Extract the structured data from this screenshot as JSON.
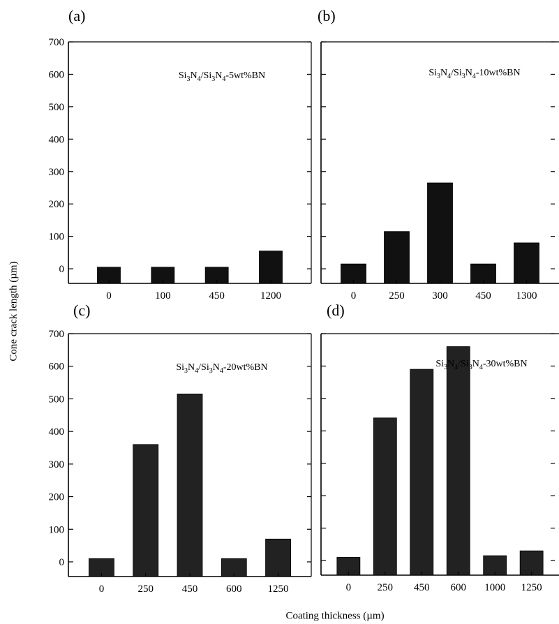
{
  "figure": {
    "xlabel": "Coating thickness (µm)",
    "ylabel": "Cone crack length (µm)"
  },
  "chart_data": [
    {
      "type": "bar",
      "panel": "(a)",
      "annotation": {
        "base": "Si",
        "sub1": "3",
        "mid": "N",
        "sub2": "4",
        "sep": "/Si",
        "sub3": "3",
        "mid2": "N",
        "sub4": "4",
        "suffix": "-5wt%BN"
      },
      "categories": [
        "0",
        "100",
        "450",
        "1200"
      ],
      "values": [
        5,
        5,
        5,
        55
      ],
      "ylim": [
        -45,
        700
      ],
      "yticks": [
        0,
        100,
        200,
        300,
        400,
        500,
        600,
        700
      ],
      "bar_color": "#111111"
    },
    {
      "type": "bar",
      "panel": "(b)",
      "annotation": {
        "base": "Si",
        "sub1": "3",
        "mid": "N",
        "sub2": "4",
        "sep": "/Si",
        "sub3": "3",
        "mid2": "N",
        "sub4": "4",
        "suffix": "-10wt%BN"
      },
      "categories": [
        "0",
        "250",
        "300",
        "450",
        "1300"
      ],
      "values": [
        15,
        115,
        265,
        15,
        80
      ],
      "ylim": [
        -45,
        700
      ],
      "yticks": [
        0,
        100,
        200,
        300,
        400,
        500,
        600,
        700
      ],
      "bar_color": "#111111"
    },
    {
      "type": "bar",
      "panel": "(c)",
      "annotation": {
        "base": "Si",
        "sub1": "3",
        "mid": "N",
        "sub2": "4",
        "sep": "/Si",
        "sub3": "3",
        "mid2": "N",
        "sub4": "4",
        "suffix": "-20wt%BN"
      },
      "categories": [
        "0",
        "250",
        "450",
        "600",
        "1250"
      ],
      "values": [
        10,
        360,
        515,
        10,
        70
      ],
      "ylim": [
        -45,
        700
      ],
      "yticks": [
        0,
        100,
        200,
        300,
        400,
        500,
        600,
        700
      ],
      "bar_color": "#222222"
    },
    {
      "type": "bar",
      "panel": "(d)",
      "annotation": {
        "base": "Si",
        "sub1": "3",
        "mid": "N",
        "sub2": "4",
        "sep": "/Si",
        "sub3": "3",
        "mid2": "N",
        "sub4": "4",
        "suffix": "-30wt%BN"
      },
      "categories": [
        "0",
        "250",
        "450",
        "600",
        "1000",
        "1250"
      ],
      "values": [
        10,
        440,
        590,
        660,
        15,
        30
      ],
      "ylim": [
        -45,
        700
      ],
      "yticks": [
        0,
        100,
        200,
        300,
        400,
        500,
        600,
        700
      ],
      "bar_color": "#222222"
    }
  ]
}
